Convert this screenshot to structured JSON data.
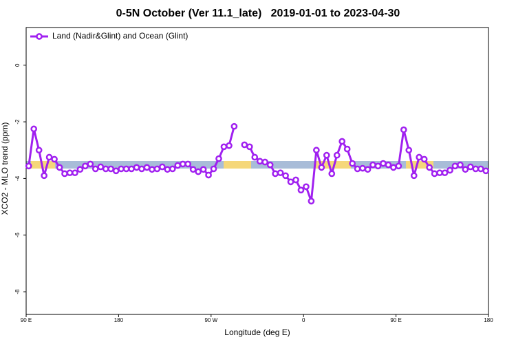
{
  "chart_data": {
    "type": "line",
    "title": "0-5N October (Ver 11.1_late)   2019-01-01 to 2023-04-30",
    "xlabel": "Longitude (deg E)",
    "ylabel": "XCO2 - MLO trend (ppm)",
    "xlim": [
      90,
      540
    ],
    "ylim": [
      -8.8,
      1.33
    ],
    "xticks": [
      {
        "value": 90,
        "label": "90 E"
      },
      180,
      {
        "value": 270,
        "label": "90 W"
      },
      {
        "value": 360,
        "label": "0"
      },
      {
        "value": 450,
        "label": "90 E"
      },
      {
        "value": 540,
        "label": "180"
      }
    ],
    "yticks": [
      0,
      -2,
      -4,
      -6,
      -8
    ],
    "legend": "upper left",
    "x": [
      92.5,
      97.5,
      102.5,
      107.5,
      112.5,
      117.5,
      122.5,
      127.5,
      132.5,
      137.5,
      142.5,
      147.5,
      152.5,
      157.5,
      162.5,
      167.5,
      172.5,
      177.5,
      182.5,
      187.5,
      192.5,
      197.5,
      202.5,
      207.5,
      212.5,
      217.5,
      222.5,
      227.5,
      232.5,
      237.5,
      242.5,
      247.5,
      252.5,
      257.5,
      262.5,
      267.5,
      272.5,
      277.5,
      282.5,
      287.5,
      292.5,
      297.5,
      302.5,
      307.5,
      312.5,
      317.5,
      322.5,
      327.5,
      332.5,
      337.5,
      342.5,
      347.5,
      352.5,
      357.5,
      362.5,
      367.5,
      372.5,
      377.5,
      382.5,
      387.5,
      392.5,
      397.5,
      402.5,
      407.5,
      412.5,
      417.5,
      422.5,
      427.5,
      432.5,
      437.5,
      442.5,
      447.5,
      452.5,
      457.5,
      462.5,
      467.5,
      472.5,
      477.5,
      482.5,
      487.5,
      492.5,
      497.5,
      502.5,
      507.5,
      512.5,
      517.5,
      522.5,
      527.5,
      532.5,
      537.5
    ],
    "series": [
      {
        "name": "Land (Nadir&Glint) and Ocean (Glint)",
        "color": "#a020f0",
        "values": [
          -3.56,
          -2.25,
          -3.0,
          -3.9,
          -3.25,
          -3.32,
          -3.61,
          -3.83,
          -3.8,
          -3.8,
          -3.68,
          -3.56,
          -3.49,
          -3.66,
          -3.59,
          -3.66,
          -3.66,
          -3.73,
          -3.66,
          -3.66,
          -3.66,
          -3.61,
          -3.66,
          -3.61,
          -3.68,
          -3.66,
          -3.59,
          -3.68,
          -3.66,
          -3.54,
          -3.49,
          -3.49,
          -3.68,
          -3.76,
          -3.68,
          -3.88,
          -3.66,
          -3.3,
          -2.88,
          -2.84,
          -2.16,
          null,
          -2.81,
          -2.88,
          -3.25,
          -3.39,
          -3.42,
          -3.52,
          -3.83,
          -3.8,
          -3.9,
          -4.12,
          -4.05,
          -4.41,
          -4.29,
          -4.8,
          -3.0,
          -3.61,
          -3.18,
          -3.83,
          -3.18,
          -2.69,
          -2.96,
          -3.47,
          -3.66,
          -3.64,
          -3.68,
          -3.52,
          -3.56,
          -3.47,
          -3.52,
          -3.61,
          -3.56,
          -2.28,
          -3.0,
          -3.9,
          -3.25,
          -3.32,
          -3.61,
          -3.83,
          -3.8,
          -3.8,
          -3.71,
          -3.56,
          -3.52,
          -3.68,
          -3.59,
          -3.66,
          -3.66,
          -3.73
        ]
      }
    ]
  }
}
